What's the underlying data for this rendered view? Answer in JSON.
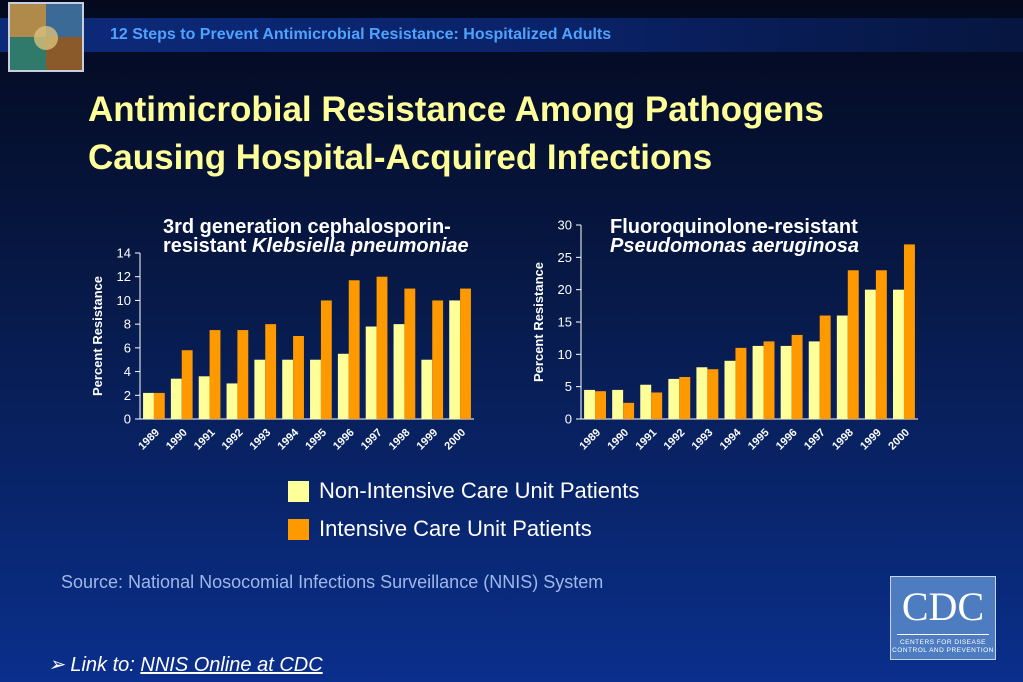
{
  "header": {
    "subtitle": "12 Steps to Prevent Antimicrobial Resistance: Hospitalized Adults",
    "title_line1": "Antimicrobial Resistance Among Pathogens",
    "title_line2": "Causing Hospital-Acquired Infections"
  },
  "charts": {
    "left_title_line1": "3rd generation cephalosporin-",
    "left_title_line2_plain": "resistant ",
    "left_title_line2_italic": "Klebsiella pneumoniae",
    "right_title_line1": "Fluoroquinolone-resistant",
    "right_title_line2_italic": "Pseudomonas aeruginosa"
  },
  "legend": {
    "non_icu": "Non-Intensive Care Unit Patients",
    "icu": "Intensive Care Unit Patients"
  },
  "colors": {
    "non_icu": "#ffff99",
    "icu": "#ff9900",
    "axis": "#ffffff"
  },
  "source": "Source: National Nosocomial Infections Surveillance (NNIS) System",
  "link": {
    "prefix": "Link to: ",
    "text": "NNIS Online at CDC"
  },
  "logo": {
    "letters": "CDC",
    "line1": "CENTERS FOR DISEASE",
    "line2": "CONTROL AND PREVENTION"
  },
  "chart_data": [
    {
      "type": "bar",
      "title": "3rd generation cephalosporin-resistant Klebsiella pneumoniae",
      "ylabel": "Percent Resistance",
      "ylim": [
        0,
        14
      ],
      "yticks": [
        0,
        2,
        4,
        6,
        8,
        10,
        12,
        14
      ],
      "categories": [
        "1989",
        "1990",
        "1991",
        "1992",
        "1993",
        "1994",
        "1995",
        "1996",
        "1997",
        "1998",
        "1999",
        "2000"
      ],
      "series": [
        {
          "name": "Non-Intensive Care Unit Patients",
          "values": [
            2.2,
            3.4,
            3.6,
            3.0,
            5.0,
            5.0,
            5.0,
            5.5,
            7.8,
            8.0,
            5.0,
            10.0
          ]
        },
        {
          "name": "Intensive Care Unit Patients",
          "values": [
            2.2,
            5.8,
            7.5,
            7.5,
            8.0,
            7.0,
            10.0,
            11.7,
            12.0,
            11.0,
            10.0,
            11.0
          ]
        }
      ]
    },
    {
      "type": "bar",
      "title": "Fluoroquinolone-resistant Pseudomonas aeruginosa",
      "ylabel": "Percent Resistance",
      "ylim": [
        0,
        30
      ],
      "yticks": [
        0,
        5,
        10,
        15,
        20,
        25,
        30
      ],
      "categories": [
        "1989",
        "1990",
        "1991",
        "1992",
        "1993",
        "1994",
        "1995",
        "1996",
        "1997",
        "1998",
        "1999",
        "2000"
      ],
      "series": [
        {
          "name": "Non-Intensive Care Unit Patients",
          "values": [
            4.5,
            4.5,
            5.3,
            6.2,
            8.0,
            9.0,
            11.3,
            11.3,
            12.0,
            16.0,
            20.0,
            20.0
          ]
        },
        {
          "name": "Intensive Care Unit Patients",
          "values": [
            4.3,
            2.5,
            4.1,
            6.5,
            7.7,
            11.0,
            12.0,
            13.0,
            16.0,
            23.0,
            23.0,
            27.0
          ]
        }
      ]
    }
  ]
}
